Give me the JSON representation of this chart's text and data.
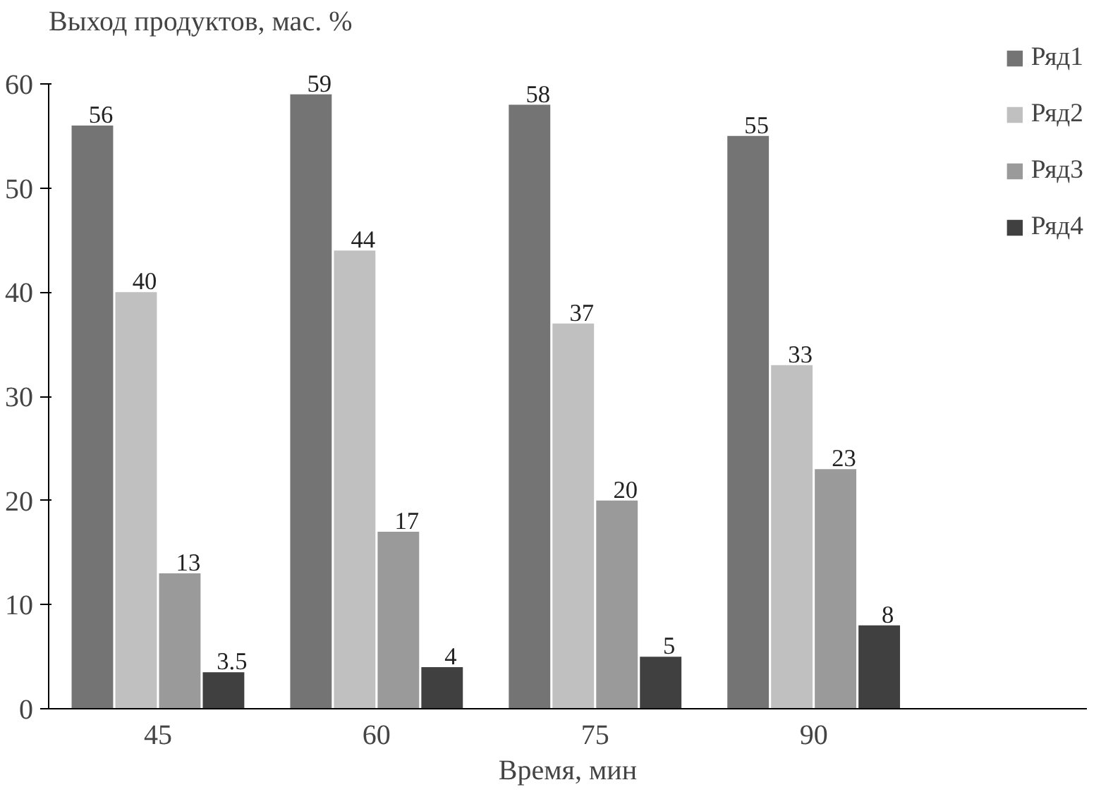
{
  "chart_data": {
    "type": "bar",
    "ylabel": "Выход продуктов, мас. %",
    "xlabel": "Время, мин",
    "categories": [
      "45",
      "60",
      "75",
      "90"
    ],
    "series": [
      {
        "name": "Ряд1",
        "color": "#747474",
        "values": [
          56,
          59,
          58,
          55
        ]
      },
      {
        "name": "Ряд2",
        "color": "#c0c0c0",
        "values": [
          40,
          44,
          37,
          33
        ]
      },
      {
        "name": "Ряд3",
        "color": "#9a9a9a",
        "values": [
          13,
          17,
          20,
          23
        ]
      },
      {
        "name": "Ряд4",
        "color": "#404040",
        "values": [
          3.5,
          4,
          5,
          8
        ]
      }
    ],
    "ylim": [
      0,
      60
    ],
    "yticks": [
      0,
      10,
      20,
      30,
      40,
      50,
      60
    ],
    "data_labels": true,
    "legend": "right",
    "grid": false
  }
}
